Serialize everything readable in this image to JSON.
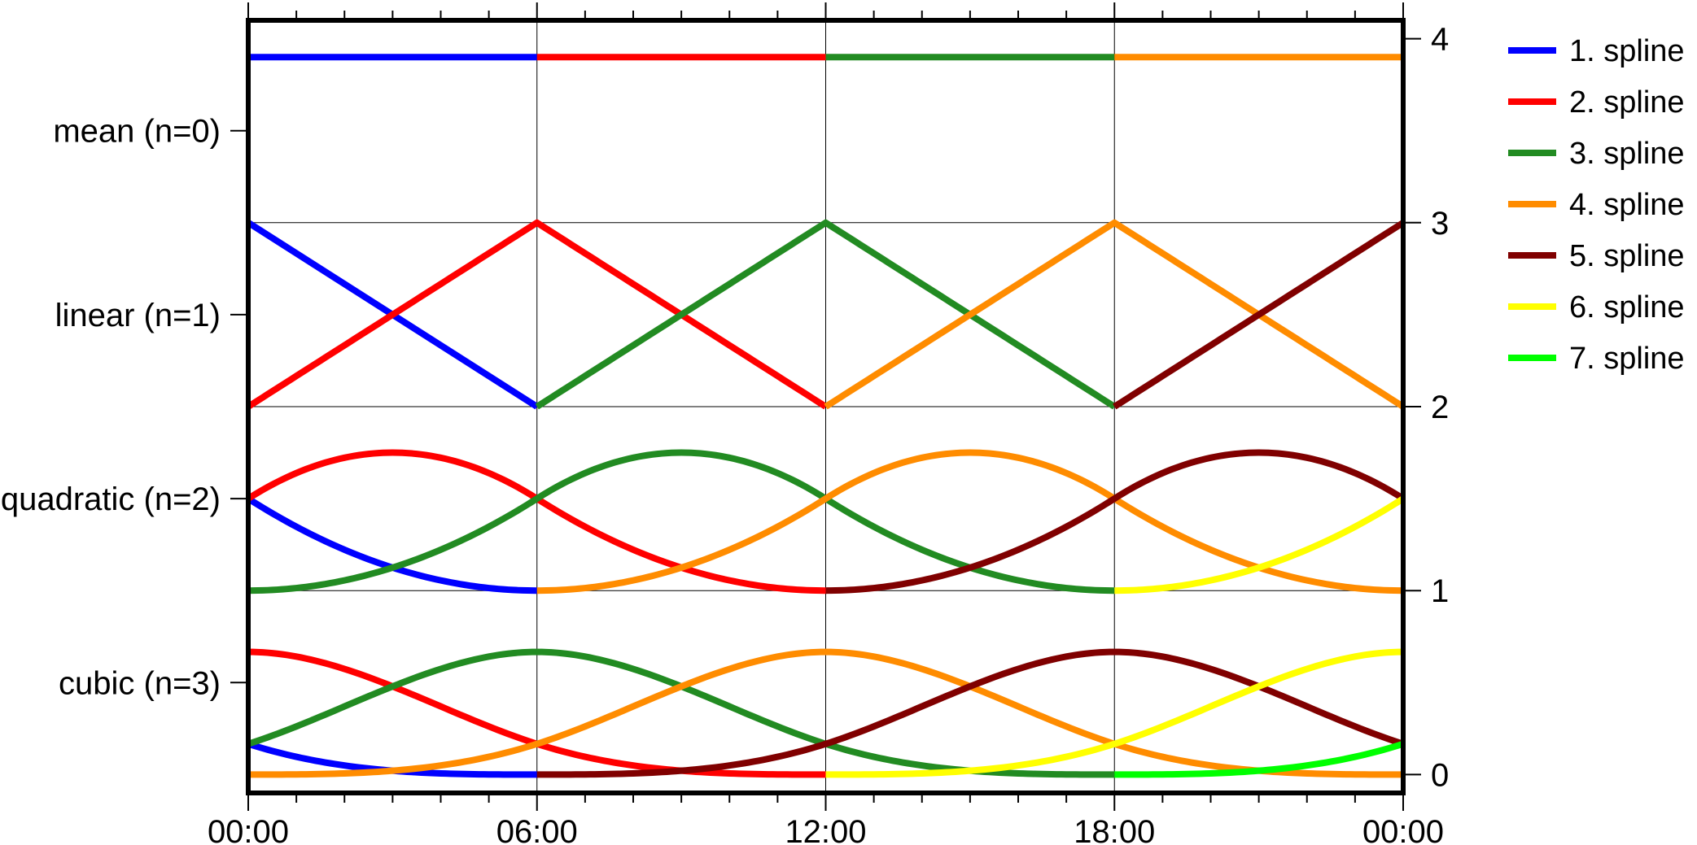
{
  "chart_data": {
    "type": "line",
    "title": "",
    "xlabel": "",
    "ylabel": "",
    "xlim": [
      "00:00",
      "24:00"
    ],
    "ylim": [
      -0.1,
      4.1
    ],
    "grid": true,
    "legend_position": "right",
    "x_tick_labels": [
      "00:00",
      "06:00",
      "12:00",
      "18:00",
      "00:00"
    ],
    "x_ticks_hours": [
      0,
      6,
      12,
      18,
      24
    ],
    "x_minor_every_hours": 1,
    "y_right_ticks": [
      "0",
      "1",
      "2",
      "3",
      "4"
    ],
    "y_left_categories": [
      {
        "label": "mean (n=0)",
        "y": 3.5
      },
      {
        "label": "linear (n=1)",
        "y": 2.5
      },
      {
        "label": "quadratic (n=2)",
        "y": 1.5
      },
      {
        "label": "cubic (n=3)",
        "y": 0.5
      }
    ],
    "series": [
      {
        "name": "1. spline",
        "color": "#0000ff"
      },
      {
        "name": "2. spline",
        "color": "#ff0000"
      },
      {
        "name": "3. spline",
        "color": "#228b22"
      },
      {
        "name": "4. spline",
        "color": "#ff8c00"
      },
      {
        "name": "5. spline",
        "color": "#800000"
      },
      {
        "name": "6. spline",
        "color": "#ffff00"
      },
      {
        "name": "7. spline",
        "color": "#00ff00"
      }
    ],
    "segments": [
      {
        "series": 0,
        "degree": 0,
        "start_hour": 0,
        "y": 3.9
      },
      {
        "series": 1,
        "degree": 0,
        "start_hour": 6,
        "y": 3.9
      },
      {
        "series": 2,
        "degree": 0,
        "start_hour": 12,
        "y": 3.9
      },
      {
        "series": 3,
        "degree": 0,
        "start_hour": 18,
        "y": 3.9
      },
      {
        "series": 0,
        "degree": 1,
        "start_hour": 0,
        "offset": 2,
        "first_knot_hour": 0
      },
      {
        "series": 1,
        "degree": 1,
        "start_hour": 0,
        "offset": 2,
        "first_knot_hour": 0
      },
      {
        "series": 2,
        "degree": 1,
        "start_hour": 6,
        "offset": 2,
        "first_knot_hour": 6
      },
      {
        "series": 3,
        "degree": 1,
        "start_hour": 12,
        "offset": 2,
        "first_knot_hour": 12
      },
      {
        "series": 4,
        "degree": 1,
        "start_hour": 18,
        "offset": 2,
        "first_knot_hour": 18
      },
      {
        "series": 0,
        "degree": 2,
        "offset": 1,
        "first_knot_hour": -12
      },
      {
        "series": 1,
        "degree": 2,
        "offset": 1,
        "first_knot_hour": -6
      },
      {
        "series": 2,
        "degree": 2,
        "offset": 1,
        "first_knot_hour": 0
      },
      {
        "series": 3,
        "degree": 2,
        "offset": 1,
        "first_knot_hour": 6
      },
      {
        "series": 4,
        "degree": 2,
        "offset": 1,
        "first_knot_hour": 12
      },
      {
        "series": 5,
        "degree": 2,
        "offset": 1,
        "first_knot_hour": 18
      },
      {
        "series": 0,
        "degree": 3,
        "offset": 0,
        "first_knot_hour": -18
      },
      {
        "series": 1,
        "degree": 3,
        "offset": 0,
        "first_knot_hour": -12
      },
      {
        "series": 2,
        "degree": 3,
        "offset": 0,
        "first_knot_hour": -6
      },
      {
        "series": 3,
        "degree": 3,
        "offset": 0,
        "first_knot_hour": 0
      },
      {
        "series": 4,
        "degree": 3,
        "offset": 0,
        "first_knot_hour": 6
      },
      {
        "series": 5,
        "degree": 3,
        "offset": 0,
        "first_knot_hour": 12
      },
      {
        "series": 6,
        "degree": 3,
        "offset": 0,
        "first_knot_hour": 18
      }
    ]
  }
}
